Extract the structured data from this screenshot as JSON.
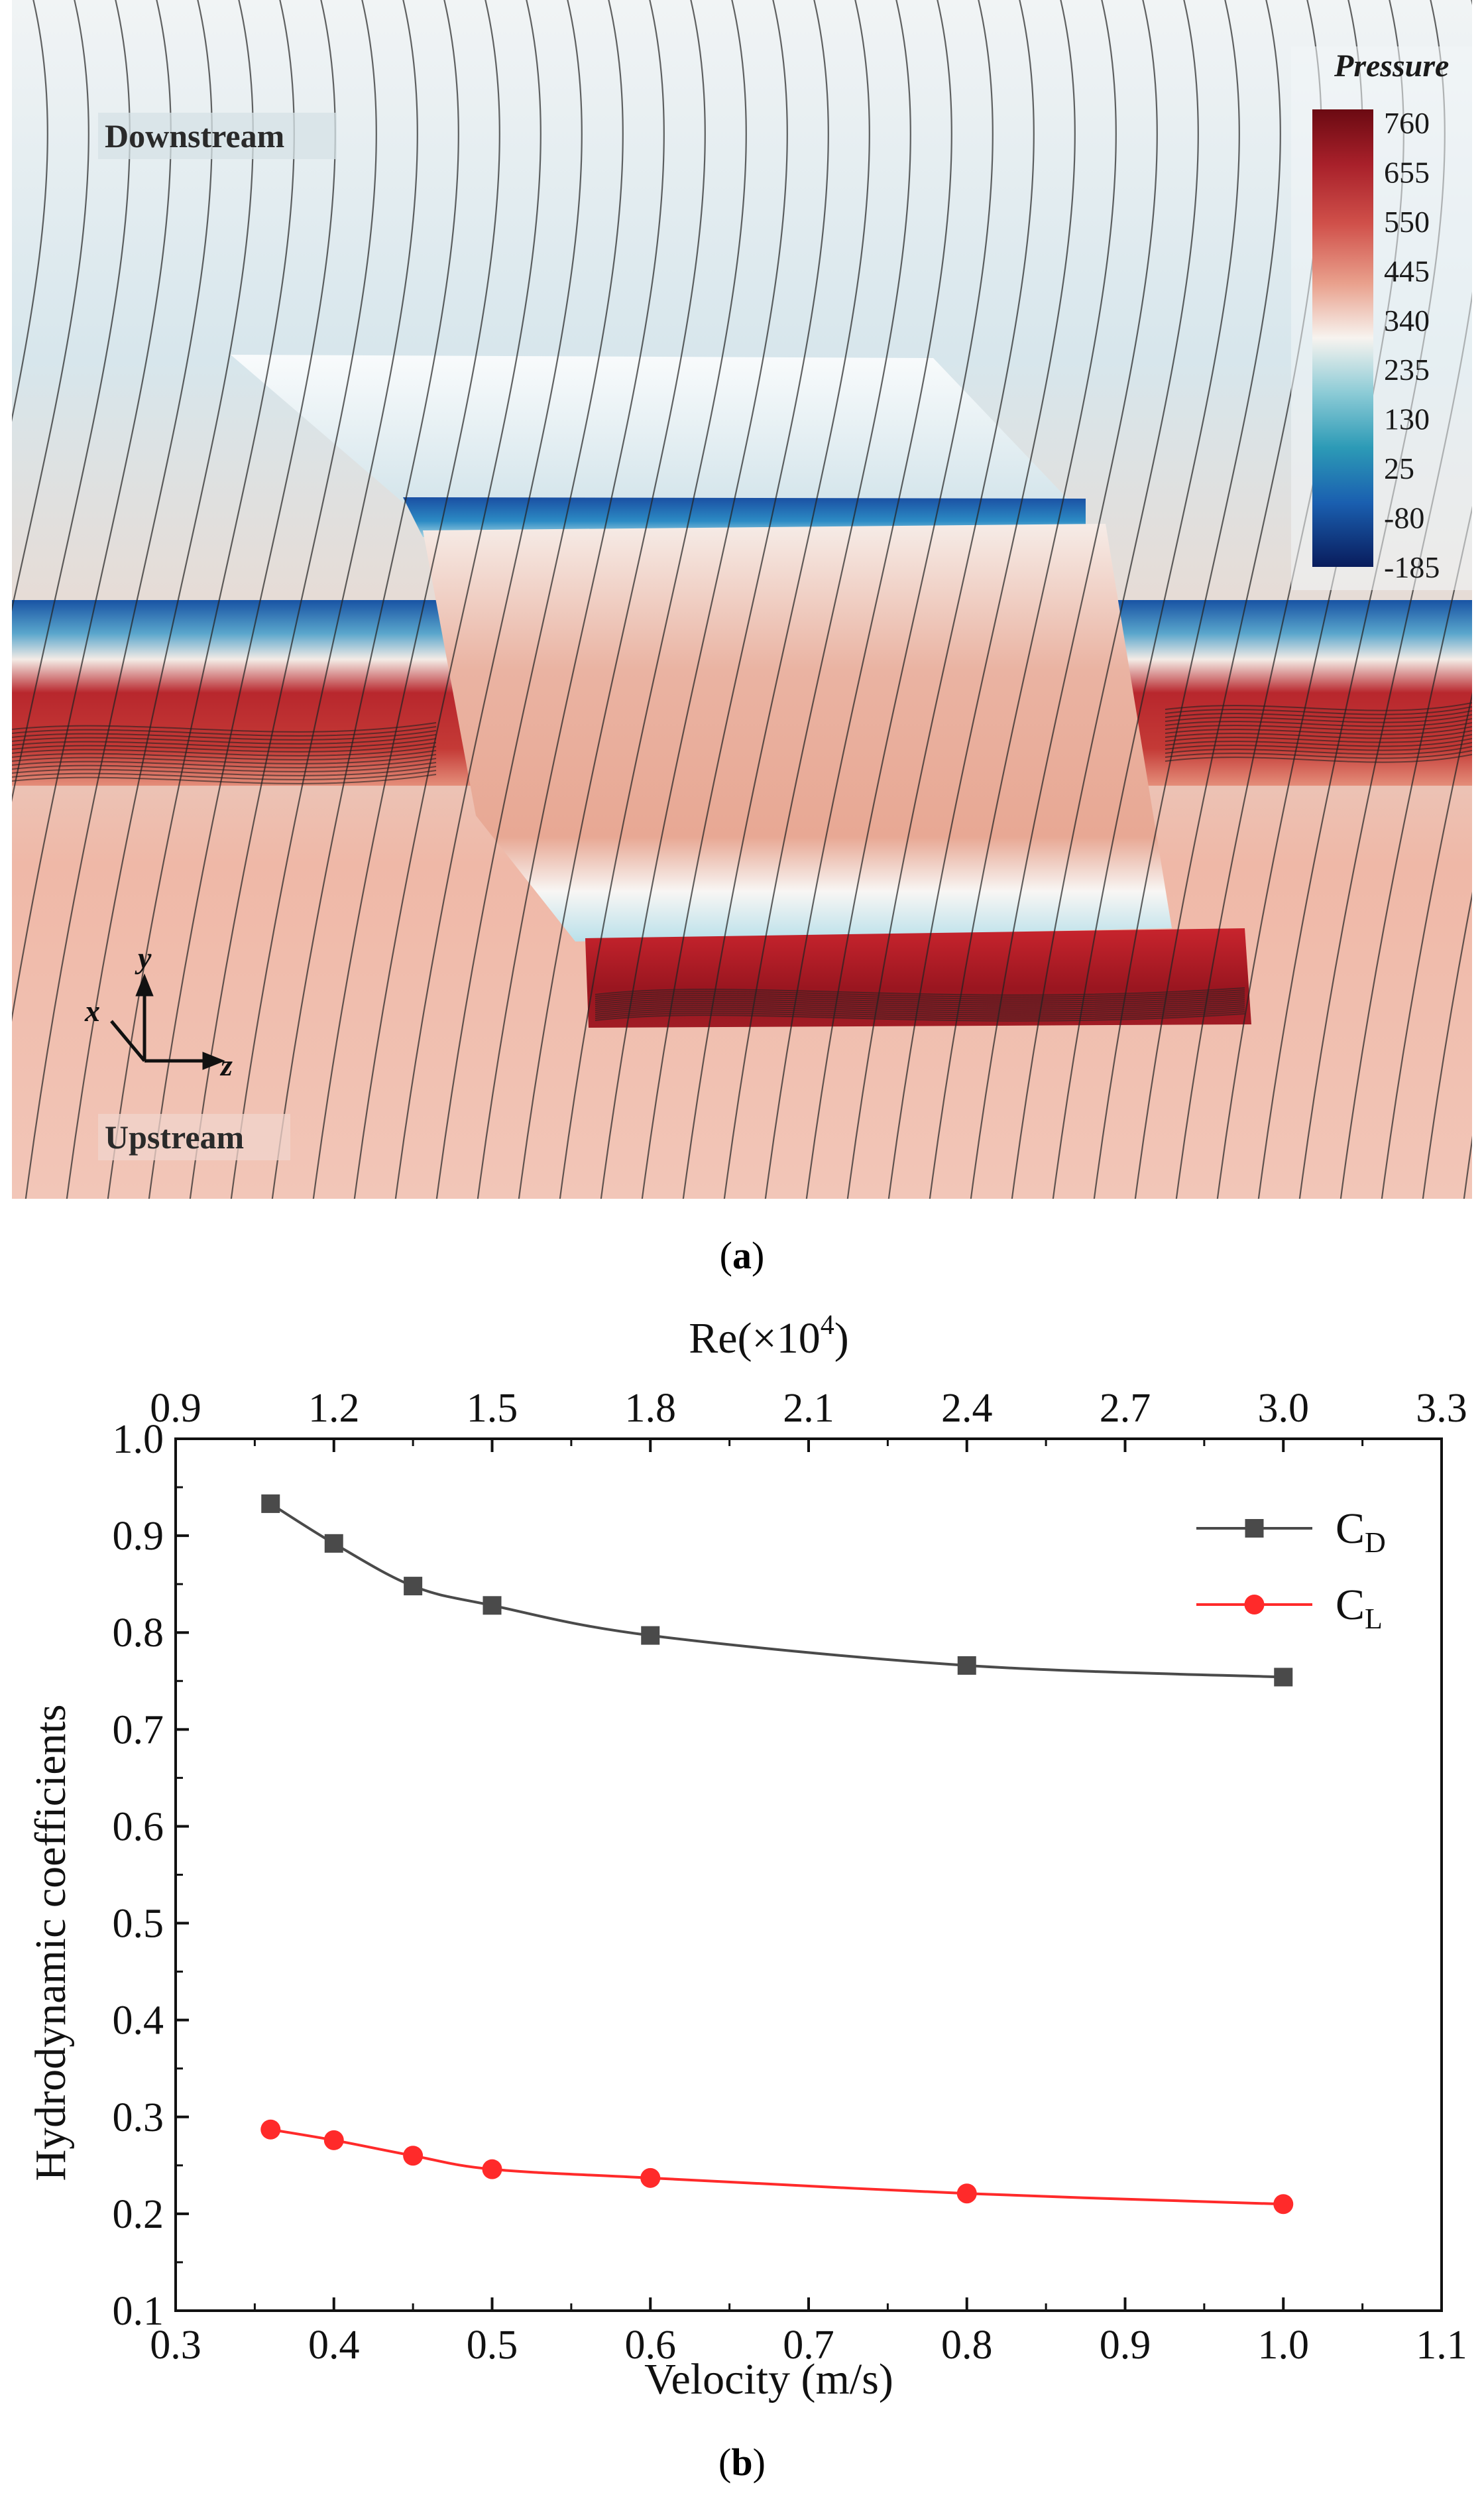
{
  "panel_a": {
    "caption_letter": "a",
    "labels": {
      "downstream": "Downstream",
      "upstream": "Upstream"
    },
    "axes_glyph": {
      "x": "x",
      "y": "y",
      "z": "z"
    },
    "colorbar": {
      "title": "Pressure",
      "ticks": [
        "760",
        "655",
        "550",
        "445",
        "340",
        "235",
        "130",
        "25",
        "-80",
        "-185"
      ],
      "colors": [
        "#6b0a12",
        "#a8202a",
        "#d0504a",
        "#e9a08c",
        "#f7f3ef",
        "#8ccbd6",
        "#2c9ab6",
        "#1a5fb0",
        "#0c2f86",
        "#091c5c"
      ]
    },
    "colors": {
      "background": "#e3ebee",
      "high": "#e8a898",
      "low": "#1c62b4",
      "streamline": "#222222"
    }
  },
  "panel_b": {
    "caption_letter": "b",
    "top_axis_title_base": "Re(×10",
    "top_axis_title_exp": "4",
    "top_axis_title_close": ")"
  },
  "chart_data": {
    "type": "line",
    "title": "",
    "xlabel": "Velocity (m/s)",
    "ylabel": "Hydrodynamic coefficients",
    "xlim": [
      0.3,
      1.1
    ],
    "ylim": [
      0.1,
      1.0
    ],
    "xticks": [
      "0.3",
      "0.4",
      "0.5",
      "0.6",
      "0.7",
      "0.8",
      "0.9",
      "1.0",
      "1.1"
    ],
    "yticks": [
      "0.1",
      "0.2",
      "0.3",
      "0.4",
      "0.5",
      "0.6",
      "0.7",
      "0.8",
      "0.9",
      "1.0"
    ],
    "top_axis": {
      "label": "Re(×10^4)",
      "lim": [
        0.9,
        3.3
      ],
      "ticks": [
        "0.9",
        "1.2",
        "1.5",
        "1.8",
        "2.1",
        "2.4",
        "2.7",
        "3.0",
        "3.3"
      ]
    },
    "legend_position": "top-right",
    "grid": false,
    "series": [
      {
        "name": "C_D",
        "name_main": "C",
        "name_sub": "D",
        "color": "#4a4a4a",
        "marker": "square",
        "x": [
          0.36,
          0.4,
          0.45,
          0.5,
          0.6,
          0.8,
          1.0
        ],
        "y": [
          0.933,
          0.892,
          0.848,
          0.828,
          0.797,
          0.766,
          0.754
        ]
      },
      {
        "name": "C_L",
        "name_main": "C",
        "name_sub": "L",
        "color": "#ff2a2a",
        "marker": "circle",
        "x": [
          0.36,
          0.4,
          0.45,
          0.5,
          0.6,
          0.8,
          1.0
        ],
        "y": [
          0.287,
          0.276,
          0.26,
          0.246,
          0.237,
          0.221,
          0.21
        ]
      }
    ]
  }
}
